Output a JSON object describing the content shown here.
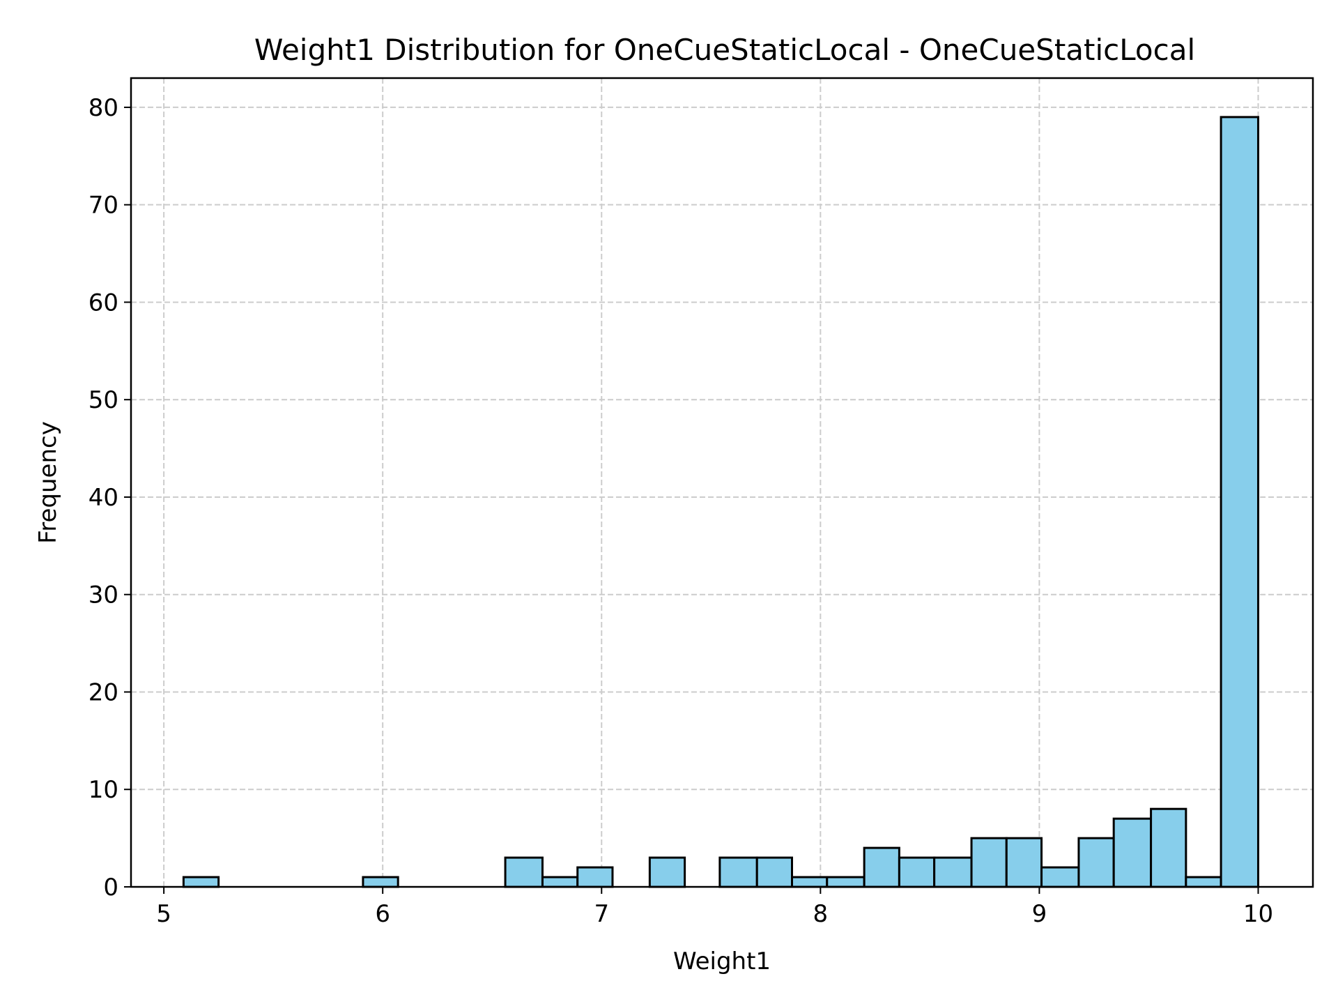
{
  "chart_data": {
    "type": "bar",
    "title": "Weight1 Distribution for OneCueStaticLocal - OneCueStaticLocal",
    "xlabel": "Weight1",
    "ylabel": "Frequency",
    "xlim": [
      4.85,
      10.25
    ],
    "ylim": [
      0,
      83
    ],
    "xticks": [
      5,
      6,
      7,
      8,
      9,
      10
    ],
    "yticks": [
      0,
      10,
      20,
      30,
      40,
      50,
      60,
      70,
      80
    ],
    "grid": true,
    "bar_color": "#87CEEB",
    "edge_color": "#000000",
    "bins": [
      {
        "x0": 5.09,
        "x1": 5.25,
        "count": 1
      },
      {
        "x0": 5.91,
        "x1": 6.07,
        "count": 1
      },
      {
        "x0": 6.56,
        "x1": 6.73,
        "count": 3
      },
      {
        "x0": 6.73,
        "x1": 6.89,
        "count": 1
      },
      {
        "x0": 6.89,
        "x1": 7.05,
        "count": 2
      },
      {
        "x0": 7.22,
        "x1": 7.38,
        "count": 3
      },
      {
        "x0": 7.54,
        "x1": 7.71,
        "count": 3
      },
      {
        "x0": 7.71,
        "x1": 7.87,
        "count": 3
      },
      {
        "x0": 7.87,
        "x1": 8.03,
        "count": 1
      },
      {
        "x0": 8.03,
        "x1": 8.2,
        "count": 1
      },
      {
        "x0": 8.2,
        "x1": 8.36,
        "count": 4
      },
      {
        "x0": 8.36,
        "x1": 8.52,
        "count": 3
      },
      {
        "x0": 8.52,
        "x1": 8.69,
        "count": 3
      },
      {
        "x0": 8.69,
        "x1": 8.85,
        "count": 5
      },
      {
        "x0": 8.85,
        "x1": 9.01,
        "count": 5
      },
      {
        "x0": 9.01,
        "x1": 9.18,
        "count": 2
      },
      {
        "x0": 9.18,
        "x1": 9.34,
        "count": 5
      },
      {
        "x0": 9.34,
        "x1": 9.51,
        "count": 7
      },
      {
        "x0": 9.51,
        "x1": 9.67,
        "count": 8
      },
      {
        "x0": 9.67,
        "x1": 9.83,
        "count": 1
      },
      {
        "x0": 9.83,
        "x1": 10.0,
        "count": 79
      }
    ]
  }
}
